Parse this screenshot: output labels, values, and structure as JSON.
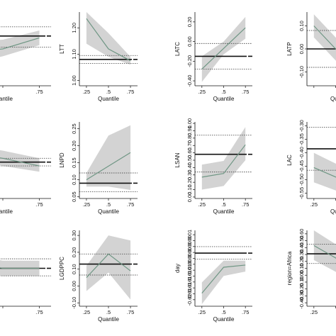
{
  "figure": {
    "colors": {
      "band": "#d3d3d3",
      "estimate": "#6f9684",
      "ols": "#111111",
      "ols_ci": "#555555",
      "axis": "#111111",
      "tick": "#111111"
    }
  },
  "chart_data": [
    {
      "type": "line",
      "row": 0,
      "col": 0,
      "ylabel": "",
      "xlabel": "Quantile",
      "x": [
        0.25,
        0.5,
        0.75
      ],
      "x_tick_labels": [
        ".75"
      ],
      "y_tick_labels": [],
      "ylim": [
        -1,
        1
      ],
      "series": [
        {
          "values": [
            -0.1,
            0.0,
            0.3
          ],
          "ci_low": [
            -0.4,
            -0.2,
            0.1
          ],
          "ci_high": [
            0.2,
            0.25,
            0.5
          ]
        }
      ],
      "ols": {
        "value": 0.35,
        "ci": [
          0.6,
          0.05
        ]
      }
    },
    {
      "type": "line",
      "row": 0,
      "col": 1,
      "ylabel": "LTT",
      "xlabel": "Quantile",
      "x": [
        0.25,
        0.5,
        0.75
      ],
      "x_tick_labels": [
        ".25",
        ".5",
        ".75"
      ],
      "y_tick_labels": [
        "1.00",
        "1.10",
        "1.20"
      ],
      "ylim": [
        0.98,
        1.26
      ],
      "series": [
        {
          "values": [
            1.235,
            1.12,
            1.075
          ],
          "ci_low": [
            1.14,
            1.09,
            1.06
          ],
          "ci_high": [
            1.26,
            1.18,
            1.09
          ]
        }
      ],
      "ols": {
        "value": 1.08,
        "ci": [
          1.095,
          1.065
        ]
      }
    },
    {
      "type": "line",
      "row": 0,
      "col": 2,
      "ylabel": "LATC",
      "xlabel": "Quantile",
      "x": [
        0.25,
        0.5,
        0.75
      ],
      "x_tick_labels": [
        ".25",
        ".5",
        ".75"
      ],
      "y_tick_labels": [
        "-0.40",
        "-0.20",
        "0.00",
        "0.20"
      ],
      "ylim": [
        -0.45,
        0.3
      ],
      "series": [
        {
          "values": [
            -0.28,
            -0.07,
            0.14
          ],
          "ci_low": [
            -0.41,
            -0.13,
            0.03
          ],
          "ci_high": [
            -0.15,
            0.0,
            0.25
          ]
        }
      ],
      "ols": {
        "value": -0.15,
        "ci": [
          -0.02,
          -0.28
        ]
      }
    },
    {
      "type": "line",
      "row": 0,
      "col": 3,
      "ylabel": "LATP",
      "xlabel": "Quantile",
      "x": [
        0.25,
        0.5,
        0.75
      ],
      "x_tick_labels": [],
      "y_tick_labels": [
        "-0.10",
        "0.00",
        "0.10"
      ],
      "ylim": [
        -0.16,
        0.16
      ],
      "series": [
        {
          "values": [
            0.1,
            0.0,
            -0.1
          ],
          "ci_low": [
            0.05,
            -0.05,
            -0.15
          ],
          "ci_high": [
            0.15,
            0.05,
            -0.05
          ]
        }
      ],
      "ols": {
        "value": 0.0,
        "ci": [
          0.08,
          -0.08
        ]
      }
    },
    {
      "type": "line",
      "row": 1,
      "col": 0,
      "ylabel": "",
      "xlabel": "Quantile",
      "x": [
        0.25,
        0.5,
        0.75
      ],
      "x_tick_labels": [
        ".75"
      ],
      "y_tick_labels": [],
      "ylim": [
        -1,
        1
      ],
      "series": [
        {
          "values": [
            0.2,
            0.05,
            -0.15
          ],
          "ci_low": [
            0.05,
            -0.15,
            -0.3
          ],
          "ci_high": [
            0.4,
            0.25,
            0.05
          ]
        }
      ],
      "ols": {
        "value": -0.05,
        "ci": [
          0.05,
          -0.15
        ]
      }
    },
    {
      "type": "line",
      "row": 1,
      "col": 1,
      "ylabel": "LNPD",
      "xlabel": "Quantile",
      "x": [
        0.25,
        0.5,
        0.75
      ],
      "x_tick_labels": [
        ".25",
        ".5",
        ".75"
      ],
      "y_tick_labels": [
        "0.05",
        "0.10",
        "0.15",
        "0.20",
        "0.25"
      ],
      "ylim": [
        0.045,
        0.27
      ],
      "series": [
        {
          "values": [
            0.1,
            0.14,
            0.18
          ],
          "ci_low": [
            0.08,
            0.08,
            0.07
          ],
          "ci_high": [
            0.12,
            0.23,
            0.26
          ]
        }
      ],
      "ols": {
        "value": 0.09,
        "ci": [
          0.12,
          0.065
        ]
      }
    },
    {
      "type": "line",
      "row": 1,
      "col": 2,
      "ylabel": "LSAN",
      "xlabel": "Quantile",
      "x": [
        0.25,
        0.5,
        0.75
      ],
      "x_tick_labels": [
        ".25",
        ".5",
        ".75"
      ],
      "y_tick_labels": [
        "0.00",
        "0.10",
        "0.20",
        "0.30",
        "0.40",
        "0.50",
        "0.60",
        "0.70",
        "0.80",
        "0.90",
        "1.00"
      ],
      "ylim": [
        -0.02,
        1.02
      ],
      "series": [
        {
          "values": [
            0.27,
            0.32,
            0.71
          ],
          "ci_low": [
            0.1,
            0.15,
            0.5
          ],
          "ci_high": [
            0.44,
            0.49,
            0.95
          ]
        }
      ],
      "ols": {
        "value": 0.58,
        "ci": [
          0.84,
          0.34
        ]
      }
    },
    {
      "type": "line",
      "row": 1,
      "col": 3,
      "ylabel": "LAC",
      "xlabel": "Quantile",
      "x": [
        0.25,
        0.5,
        0.75
      ],
      "x_tick_labels": [
        ".25"
      ],
      "y_tick_labels": [
        "-0.55",
        "-0.50",
        "-0.45",
        "-0.40",
        "-0.35",
        "-0.30"
      ],
      "ylim": [
        -0.57,
        -0.285
      ],
      "series": [
        {
          "values": [
            -0.455,
            -0.49,
            -0.52
          ],
          "ci_low": [
            -0.51,
            -0.54,
            -0.57
          ],
          "ci_high": [
            -0.4,
            -0.44,
            -0.47
          ]
        }
      ],
      "ols": {
        "value": -0.385,
        "ci": [
          -0.305,
          -0.465
        ]
      }
    },
    {
      "type": "line",
      "row": 2,
      "col": 0,
      "ylabel": "",
      "xlabel": "",
      "x": [
        0.25,
        0.5,
        0.75
      ],
      "x_tick_labels": [
        ".75"
      ],
      "y_tick_labels": [],
      "ylim": [
        -1,
        1
      ],
      "series": [
        {
          "values": [
            0.15,
            0.0,
            0.0
          ],
          "ci_low": [
            -0.1,
            -0.2,
            -0.2
          ],
          "ci_high": [
            0.4,
            0.2,
            0.2
          ]
        }
      ],
      "ols": {
        "value": 0.0,
        "ci": [
          0.25,
          -0.2
        ]
      }
    },
    {
      "type": "line",
      "row": 2,
      "col": 1,
      "ylabel": "LGDPPC",
      "xlabel": "Quantile",
      "x": [
        0.25,
        0.5,
        0.75
      ],
      "x_tick_labels": [
        ".25",
        ".5",
        ".75"
      ],
      "y_tick_labels": [
        "-0.10",
        "0.00",
        "0.10",
        "0.20",
        "0.30"
      ],
      "ylim": [
        -0.12,
        0.33
      ],
      "series": [
        {
          "values": [
            0.05,
            0.19,
            0.09
          ],
          "ci_low": [
            -0.03,
            0.08,
            -0.08
          ],
          "ci_high": [
            0.12,
            0.3,
            0.27
          ]
        }
      ],
      "ols": {
        "value": 0.13,
        "ci": [
          0.19,
          0.065
        ]
      }
    },
    {
      "type": "line",
      "row": 2,
      "col": 2,
      "ylabel": "day",
      "xlabel": "Quantile",
      "x": [
        0.25,
        0.5,
        0.75
      ],
      "x_tick_labels": [
        ".25",
        ".5",
        ".75"
      ],
      "y_tick_labels": [
        "-0.02",
        "-0.01",
        "-0.01",
        "-0.01",
        "-0.01",
        "-0.01",
        "0.00",
        "0.00",
        "0.00",
        "0.00",
        "0.00",
        "0.01"
      ],
      "ylim": [
        -0.023,
        0.012
      ],
      "series": [
        {
          "values": [
            -0.017,
            -0.005,
            -0.004
          ],
          "ci_low": [
            -0.022,
            -0.009,
            -0.007
          ],
          "ci_high": [
            -0.012,
            -0.002,
            -0.002
          ]
        }
      ],
      "ols": {
        "value": 0.0015,
        "ci": [
          0.0045,
          -0.0013
        ]
      }
    },
    {
      "type": "line",
      "row": 2,
      "col": 3,
      "ylabel": "region=Africa",
      "xlabel": "",
      "x": [
        0.25,
        0.5,
        0.75
      ],
      "x_tick_labels": [
        ".25"
      ],
      "y_tick_labels": [
        "-0.40",
        "-0.30",
        "-0.20",
        "-0.10",
        "0.00",
        "0.10",
        "0.20",
        "0.30",
        "0.40",
        "0.50",
        "0.60"
      ],
      "ylim": [
        -0.45,
        0.65
      ],
      "series": [
        {
          "values": [
            0.43,
            0.25,
            0.07
          ],
          "ci_low": [
            0.22,
            0.05,
            -0.17
          ],
          "ci_high": [
            0.65,
            0.45,
            0.3
          ]
        }
      ],
      "ols": {
        "value": 0.31,
        "ci": [
          0.45,
          0.17
        ]
      }
    }
  ]
}
